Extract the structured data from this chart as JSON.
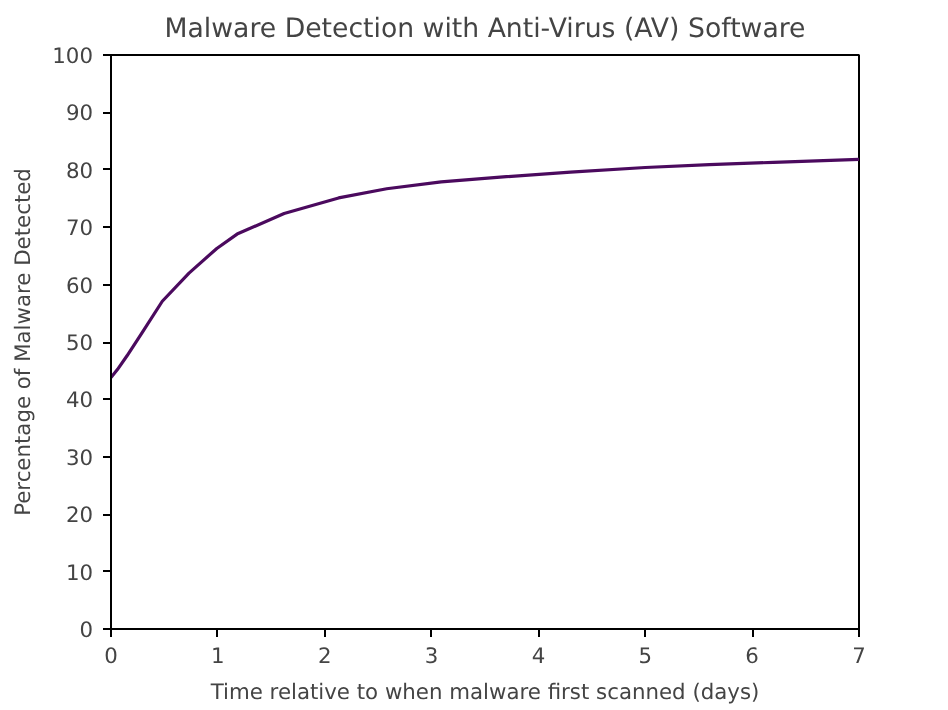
{
  "chart_data": {
    "type": "line",
    "title": "Malware Detection with Anti-Virus (AV) Software",
    "xlabel": "Time relative to when malware first scanned (days)",
    "ylabel": "Percentage of Malware Detected",
    "x": [
      0,
      0.06,
      0.15,
      0.29,
      0.48,
      0.73,
      0.99,
      1.18,
      1.62,
      2.13,
      2.58,
      3.09,
      3.7,
      4.3,
      5.0,
      5.6,
      6.2,
      7.0
    ],
    "series": [
      {
        "color": "#4b0a5e",
        "values": [
          43.8,
          45.2,
          47.6,
          51.6,
          57.1,
          62,
          66.3,
          68.8,
          72.4,
          75.1,
          76.7,
          77.9,
          78.8,
          79.6,
          80.4,
          80.9,
          81.3,
          81.8
        ]
      }
    ],
    "xlim": [
      0,
      7
    ],
    "ylim": [
      0,
      100
    ],
    "xticks": [
      0,
      1,
      2,
      3,
      4,
      5,
      6,
      7
    ],
    "yticks": [
      0,
      10,
      20,
      30,
      40,
      50,
      60,
      70,
      80,
      90,
      100
    ],
    "grid": false
  }
}
